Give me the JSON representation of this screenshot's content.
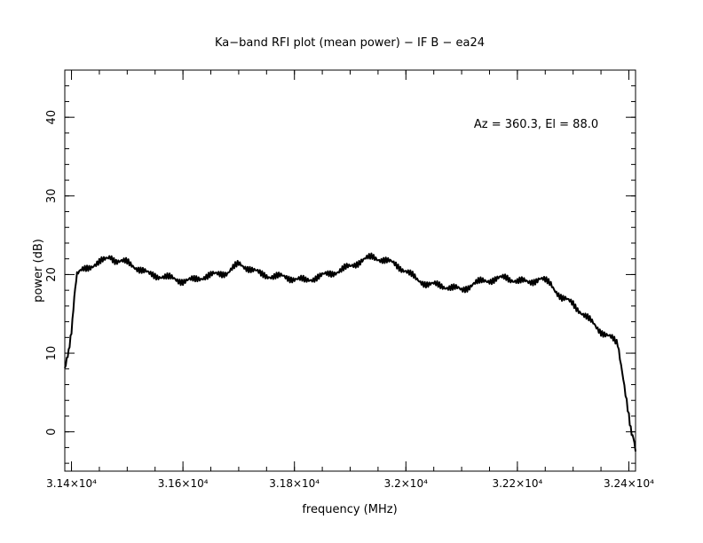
{
  "chart_data": {
    "type": "line",
    "title": "Ka−band RFI plot (mean power) − IF B − ea24",
    "xlabel": "frequency (MHz)",
    "ylabel": "power (dB)",
    "annotation": "Az = 360.3, El = 88.0",
    "xlim": [
      31388,
      32412
    ],
    "ylim": [
      -5,
      46
    ],
    "x_ticks": [
      {
        "value": 31400,
        "label": "3.14×10⁴"
      },
      {
        "value": 31600,
        "label": "3.16×10⁴"
      },
      {
        "value": 31800,
        "label": "3.18×10⁴"
      },
      {
        "value": 32000,
        "label": "3.2×10⁴"
      },
      {
        "value": 32200,
        "label": "3.22×10⁴"
      },
      {
        "value": 32400,
        "label": "3.24×10⁴"
      }
    ],
    "y_ticks": [
      {
        "value": 0,
        "label": "0"
      },
      {
        "value": 10,
        "label": "10"
      },
      {
        "value": 20,
        "label": "20"
      },
      {
        "value": 30,
        "label": "30"
      },
      {
        "value": 40,
        "label": "40"
      }
    ],
    "grid": false,
    "line_color": "#000000",
    "series": [
      {
        "x": [
          31388,
          31395,
          31400,
          31405,
          31410,
          31420,
          31440,
          31460,
          31470,
          31480,
          31500,
          31520,
          31540,
          31560,
          31580,
          31600,
          31620,
          31640,
          31660,
          31680,
          31700,
          31720,
          31740,
          31760,
          31780,
          31800,
          31820,
          31840,
          31860,
          31880,
          31900,
          31920,
          31940,
          31960,
          31980,
          32000,
          32020,
          32040,
          32060,
          32080,
          32100,
          32120,
          32140,
          32160,
          32180,
          32200,
          32220,
          32240,
          32260,
          32280,
          32300,
          32320,
          32340,
          32350,
          32360,
          32370,
          32380,
          32390,
          32400,
          32405,
          32410,
          32412
        ],
        "y": [
          8,
          10,
          13,
          17,
          20,
          20.5,
          21.3,
          21.8,
          22.3,
          21.8,
          21.5,
          20.8,
          20.0,
          19.8,
          19.5,
          19.2,
          19.3,
          19.8,
          20.0,
          20.3,
          21.3,
          20.8,
          20.0,
          19.8,
          19.7,
          19.5,
          19.2,
          19.7,
          20.0,
          20.5,
          21.0,
          21.8,
          22.2,
          21.9,
          21.3,
          20.5,
          19.3,
          18.8,
          18.6,
          18.4,
          18.0,
          18.8,
          19.2,
          19.4,
          19.6,
          19.2,
          19.0,
          19.5,
          18.8,
          17.0,
          16.3,
          14.8,
          13.5,
          12.8,
          12.3,
          11.8,
          11.2,
          7.0,
          2.0,
          0.0,
          -1.5,
          -2.5
        ]
      }
    ]
  }
}
